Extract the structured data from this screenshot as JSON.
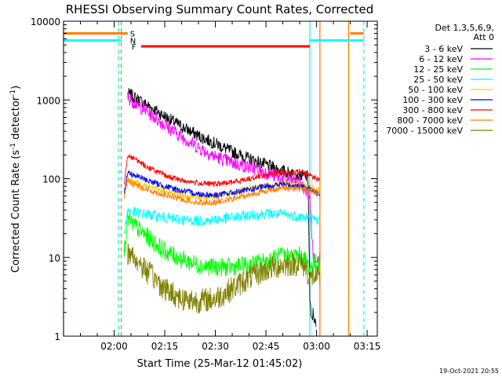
{
  "chart_data": {
    "type": "line",
    "title": "RHESSI Observing Summary Count Rates, Corrected",
    "xlabel": "Start Time (25-Mar-12 01:45:02)",
    "ylabel_main": "Corrected Count Rate (s",
    "ylabel_sup1": "-1",
    "ylabel_mid": " detector",
    "ylabel_sup2": "-1",
    "ylabel_end": ")",
    "yscale": "log",
    "ylim": [
      1,
      10000
    ],
    "xlim_minutes": [
      0,
      93
    ],
    "xtick_minutes": [
      15,
      30,
      45,
      60,
      75,
      90
    ],
    "xticks": [
      "02:00",
      "02:15",
      "02:30",
      "02:45",
      "03:00",
      "03:15"
    ],
    "yticks": [
      1,
      10,
      100,
      1000,
      10000
    ],
    "ytick_labels": [
      "1",
      "10",
      "100",
      "1000",
      "10000"
    ],
    "legend_header": "Det 1,3,5,6,9,",
    "legend_att": "Att 0",
    "legend_position": "right",
    "footer_timestamp": "19-Oct-2021 20:55",
    "flags": [
      {
        "letter": "S",
        "color": "#ff8000",
        "level": 7000,
        "ranges": [
          [
            0,
            19
          ],
          [
            85,
            89
          ]
        ]
      },
      {
        "letter": "N",
        "color": "#00ffff",
        "level": 5700,
        "ranges": [
          [
            0,
            17
          ],
          [
            73,
            89
          ]
        ]
      },
      {
        "letter": "F",
        "color": "#ff0000",
        "level": 4800,
        "ranges": [
          [
            23,
            73
          ]
        ]
      }
    ],
    "markers": [
      {
        "minute": 0,
        "color": "#00ffff",
        "dashed": false
      },
      {
        "minute": 16.3,
        "color": "#00ffff",
        "dashed": true
      },
      {
        "minute": 17.1,
        "color": "#ff8000",
        "dashed": true
      },
      {
        "minute": 73,
        "color": "#00ffff",
        "dashed": false
      },
      {
        "minute": 76,
        "color": "#ff8000",
        "dashed": false
      },
      {
        "minute": 84.5,
        "color": "#ff8000",
        "dashed": false
      },
      {
        "minute": 89,
        "color": "#00ffff",
        "dashed": true
      }
    ],
    "series": [
      {
        "name": "3 - 6 keV",
        "color": "#000000",
        "noise": 0.08,
        "x": [
          19,
          20,
          25,
          30,
          35,
          40,
          45,
          50,
          55,
          60,
          65,
          70,
          72.5,
          73,
          73.5,
          74,
          75
        ],
        "y": [
          1200,
          1150,
          850,
          620,
          460,
          350,
          280,
          220,
          180,
          150,
          125,
          110,
          105,
          3,
          1.5,
          2,
          1.2
        ]
      },
      {
        "name": "6 - 12 keV",
        "color": "#ff00ff",
        "noise": 0.09,
        "x": [
          19,
          20,
          25,
          30,
          35,
          40,
          45,
          50,
          55,
          60,
          65,
          70,
          73,
          74,
          75,
          76
        ],
        "y": [
          1100,
          1000,
          700,
          480,
          340,
          250,
          190,
          160,
          140,
          120,
          100,
          90,
          60,
          10,
          10,
          10
        ]
      },
      {
        "name": "12 - 25 keV",
        "color": "#00ff00",
        "noise": 0.12,
        "x": [
          18,
          19,
          20,
          25,
          30,
          35,
          40,
          45,
          50,
          55,
          60,
          65,
          70,
          72,
          73,
          74,
          75,
          76
        ],
        "y": [
          12,
          32,
          28,
          18,
          12,
          9.5,
          8,
          7.5,
          7.5,
          8,
          9,
          10.5,
          10.5,
          9,
          7,
          9,
          8,
          8
        ]
      },
      {
        "name": "25 - 50 keV",
        "color": "#00ffff",
        "noise": 0.07,
        "x": [
          18,
          19,
          20,
          25,
          30,
          35,
          40,
          45,
          50,
          55,
          60,
          65,
          70,
          73,
          74,
          75,
          76
        ],
        "y": [
          20,
          40,
          38,
          35,
          32,
          30,
          29,
          30,
          32,
          34,
          36,
          35,
          33,
          31,
          30,
          30,
          30
        ]
      },
      {
        "name": "50 - 100 keV",
        "color": "#ffcc00",
        "noise": 0.04,
        "x": [
          18,
          19,
          20,
          25,
          30,
          35,
          40,
          45,
          50,
          55,
          60,
          65,
          70,
          73,
          74,
          75,
          76
        ],
        "y": [
          60,
          100,
          95,
          80,
          70,
          62,
          58,
          60,
          66,
          74,
          82,
          88,
          85,
          80,
          75,
          72,
          72
        ]
      },
      {
        "name": "100 - 300 keV",
        "color": "#0000ff",
        "noise": 0.04,
        "x": [
          18,
          19,
          20,
          25,
          30,
          35,
          40,
          45,
          50,
          55,
          60,
          65,
          70,
          73,
          74,
          75,
          76
        ],
        "y": [
          70,
          120,
          115,
          95,
          80,
          70,
          64,
          62,
          66,
          72,
          80,
          85,
          80,
          75,
          68,
          66,
          66
        ]
      },
      {
        "name": "300 - 800 keV",
        "color": "#ff0000",
        "noise": 0.035,
        "x": [
          18,
          19,
          20,
          25,
          30,
          35,
          40,
          45,
          50,
          55,
          60,
          65,
          70,
          73,
          74,
          75,
          76
        ],
        "y": [
          90,
          200,
          190,
          140,
          110,
          95,
          88,
          85,
          90,
          100,
          112,
          122,
          120,
          112,
          105,
          100,
          98
        ]
      },
      {
        "name": "800 - 7000 keV",
        "color": "#ff8000",
        "noise": 0.04,
        "x": [
          18,
          19,
          20,
          25,
          30,
          35,
          40,
          45,
          50,
          55,
          60,
          65,
          70,
          73,
          74,
          75,
          76
        ],
        "y": [
          60,
          95,
          88,
          72,
          62,
          55,
          50,
          50,
          55,
          62,
          70,
          76,
          75,
          70,
          68,
          68,
          68
        ]
      },
      {
        "name": "7000 - 15000 keV",
        "color": "#808000",
        "noise": 0.16,
        "x": [
          19,
          20,
          25,
          30,
          35,
          40,
          45,
          50,
          55,
          60,
          65,
          70,
          72,
          73,
          74,
          75,
          76
        ],
        "y": [
          11,
          11,
          6.5,
          4,
          3,
          2.8,
          3,
          4,
          5.5,
          7,
          8,
          8.5,
          7.5,
          5,
          6,
          5.5,
          5
        ]
      }
    ]
  }
}
